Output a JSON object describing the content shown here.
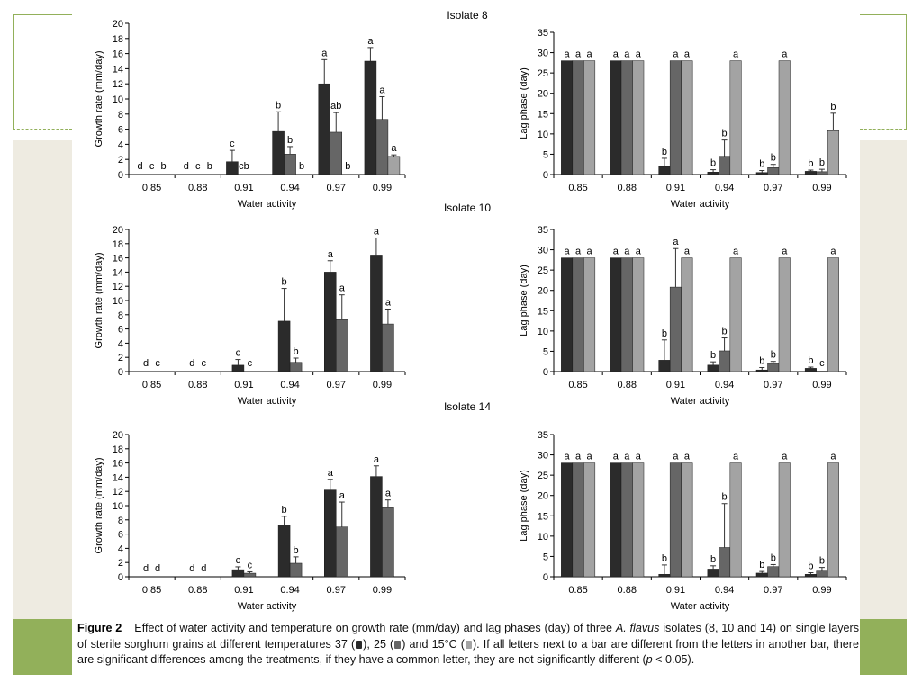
{
  "colors": {
    "t37": "#2b2b2b",
    "t25": "#666666",
    "t15": "#a3a3a3"
  },
  "caption": {
    "label": "Figure 2",
    "p1": "Effect of water activity and temperature on growth rate (mm/day) and lag phases (day) of three",
    "species": "A. flavus",
    "p2": " isolates (8, 10 and 14) on single layers of sterile sorghum grains at different temperatures 37 (",
    "p3": "), 25 (",
    "p4": ") and 15°C (",
    "p5": "). If all letters next to a bar are different from the letters in another bar, there are significant differences among the treatments, if they have a common letter, they are not significantly different (",
    "p_italic": "p",
    "p6": " < 0.05)."
  },
  "chart_data": [
    {
      "type": "bar",
      "isolate_title": "Isolate 8",
      "xlabel": "Water activity",
      "ylabel": "Growth rate (mm/day)",
      "ylim": [
        0,
        20
      ],
      "yticks": [
        0,
        2,
        4,
        6,
        8,
        10,
        12,
        14,
        16,
        18,
        20
      ],
      "categories": [
        "0.85",
        "0.88",
        "0.91",
        "0.94",
        "0.97",
        "0.99"
      ],
      "series_count": 3,
      "values": [
        [
          0,
          0,
          0
        ],
        [
          0,
          0,
          0
        ],
        [
          1.7,
          0,
          0
        ],
        [
          5.7,
          2.7,
          0
        ],
        [
          12.0,
          5.6,
          0
        ],
        [
          15.0,
          7.3,
          2.4
        ]
      ],
      "errors": [
        [
          0,
          0,
          0
        ],
        [
          0,
          0,
          0
        ],
        [
          1.5,
          0,
          0
        ],
        [
          2.6,
          1.0,
          0
        ],
        [
          3.2,
          2.6,
          0
        ],
        [
          1.8,
          3.0,
          0.2
        ]
      ],
      "labels": [
        [
          "d",
          "c",
          "b"
        ],
        [
          "d",
          "c",
          "b"
        ],
        [
          "c",
          "cb",
          ""
        ],
        [
          "b",
          "b",
          "b"
        ],
        [
          "a",
          "ab",
          "b"
        ],
        [
          "a",
          "a",
          "a"
        ]
      ]
    },
    {
      "type": "bar",
      "isolate_title": "",
      "xlabel": "Water activity",
      "ylabel": "Lag phase (day)",
      "ylim": [
        0,
        35
      ],
      "yticks": [
        0,
        5,
        10,
        15,
        20,
        25,
        30,
        35
      ],
      "categories": [
        "0.85",
        "0.88",
        "0.91",
        "0.94",
        "0.97",
        "0.99"
      ],
      "series_count": 3,
      "values": [
        [
          28,
          28,
          28
        ],
        [
          28,
          28,
          28
        ],
        [
          2.0,
          28,
          28
        ],
        [
          0.6,
          4.5,
          28
        ],
        [
          0.5,
          1.7,
          28
        ],
        [
          0.8,
          0.7,
          10.8
        ]
      ],
      "errors": [
        [
          0,
          0,
          0
        ],
        [
          0,
          0,
          0
        ],
        [
          2.0,
          0,
          0
        ],
        [
          0.6,
          4.0,
          0
        ],
        [
          0.5,
          0.8,
          0
        ],
        [
          0.3,
          0.6,
          4.3
        ]
      ],
      "labels": [
        [
          "a",
          "a",
          "a"
        ],
        [
          "a",
          "a",
          "a"
        ],
        [
          "b",
          "a",
          "a"
        ],
        [
          "b",
          "b",
          "a"
        ],
        [
          "b",
          "b",
          "a"
        ],
        [
          "b",
          "b",
          "b"
        ]
      ]
    },
    {
      "type": "bar",
      "isolate_title": "Isolate 10",
      "xlabel": "Water activity",
      "ylabel": "Growth rate (mm/day)",
      "ylim": [
        0,
        20
      ],
      "yticks": [
        0,
        2,
        4,
        6,
        8,
        10,
        12,
        14,
        16,
        18,
        20
      ],
      "categories": [
        "0.85",
        "0.88",
        "0.91",
        "0.94",
        "0.97",
        "0.99"
      ],
      "series_count": 2,
      "values": [
        [
          0,
          0
        ],
        [
          0,
          0
        ],
        [
          0.9,
          0
        ],
        [
          7.1,
          1.3
        ],
        [
          14.0,
          7.3
        ],
        [
          16.4,
          6.7
        ]
      ],
      "errors": [
        [
          0,
          0
        ],
        [
          0,
          0
        ],
        [
          0.8,
          0
        ],
        [
          4.6,
          0.6
        ],
        [
          1.6,
          3.5
        ],
        [
          2.4,
          2.1
        ]
      ],
      "labels": [
        [
          "d",
          "c"
        ],
        [
          "d",
          "c"
        ],
        [
          "c",
          "c"
        ],
        [
          "b",
          "b"
        ],
        [
          "a",
          "a"
        ],
        [
          "a",
          "a"
        ]
      ]
    },
    {
      "type": "bar",
      "isolate_title": "",
      "xlabel": "Water activity",
      "ylabel": "Lag phase (day)",
      "ylim": [
        0,
        35
      ],
      "yticks": [
        0,
        5,
        10,
        15,
        20,
        25,
        30,
        35
      ],
      "categories": [
        "0.85",
        "0.88",
        "0.91",
        "0.94",
        "0.97",
        "0.99"
      ],
      "series_count": 3,
      "values": [
        [
          28,
          28,
          28
        ],
        [
          28,
          28,
          28
        ],
        [
          2.8,
          20.8,
          28
        ],
        [
          1.6,
          5.1,
          28
        ],
        [
          0.4,
          2.0,
          28
        ],
        [
          0.8,
          0.1,
          28
        ]
      ],
      "errors": [
        [
          0,
          0,
          0
        ],
        [
          0,
          0,
          0
        ],
        [
          5.0,
          9.5,
          0
        ],
        [
          0.8,
          3.2,
          0
        ],
        [
          0.6,
          0.5,
          0
        ],
        [
          0.3,
          0,
          0
        ]
      ],
      "labels": [
        [
          "a",
          "a",
          "a"
        ],
        [
          "a",
          "a",
          "a"
        ],
        [
          "b",
          "a",
          "a"
        ],
        [
          "b",
          "b",
          "a"
        ],
        [
          "b",
          "b",
          "a"
        ],
        [
          "b",
          "c",
          "a"
        ]
      ]
    },
    {
      "type": "bar",
      "isolate_title": "Isolate 14",
      "xlabel": "Water activity",
      "ylabel": "Growth rate (mm/day)",
      "ylim": [
        0,
        20
      ],
      "yticks": [
        0,
        2,
        4,
        6,
        8,
        10,
        12,
        14,
        16,
        18,
        20
      ],
      "categories": [
        "0.85",
        "0.88",
        "0.91",
        "0.94",
        "0.97",
        "0.99"
      ],
      "series_count": 2,
      "values": [
        [
          0,
          0
        ],
        [
          0,
          0
        ],
        [
          1.0,
          0.5
        ],
        [
          7.2,
          1.9
        ],
        [
          12.2,
          7.0
        ],
        [
          14.1,
          9.7
        ]
      ],
      "errors": [
        [
          0,
          0
        ],
        [
          0,
          0
        ],
        [
          0.4,
          0.2
        ],
        [
          1.3,
          0.9
        ],
        [
          1.5,
          3.5
        ],
        [
          1.5,
          1.1
        ]
      ],
      "labels": [
        [
          "d",
          "d"
        ],
        [
          "d",
          "d"
        ],
        [
          "c",
          "c"
        ],
        [
          "b",
          "b"
        ],
        [
          "a",
          "a"
        ],
        [
          "a",
          "a"
        ]
      ]
    },
    {
      "type": "bar",
      "isolate_title": "",
      "xlabel": "Water activity",
      "ylabel": "Lag phase (day)",
      "ylim": [
        0,
        35
      ],
      "yticks": [
        0,
        5,
        10,
        15,
        20,
        25,
        30,
        35
      ],
      "categories": [
        "0.85",
        "0.88",
        "0.91",
        "0.94",
        "0.97",
        "0.99"
      ],
      "series_count": 3,
      "values": [
        [
          28,
          28,
          28
        ],
        [
          28,
          28,
          28
        ],
        [
          0.6,
          28,
          28
        ],
        [
          1.9,
          7.2,
          28
        ],
        [
          0.9,
          2.5,
          28
        ],
        [
          0.6,
          1.4,
          28
        ]
      ],
      "errors": [
        [
          0,
          0,
          0
        ],
        [
          0,
          0,
          0
        ],
        [
          2.3,
          0,
          0
        ],
        [
          0.8,
          10.8,
          0
        ],
        [
          0.4,
          0.5,
          0
        ],
        [
          0.4,
          0.9,
          0
        ]
      ],
      "labels": [
        [
          "a",
          "a",
          "a"
        ],
        [
          "a",
          "a",
          "a"
        ],
        [
          "b",
          "a",
          "a"
        ],
        [
          "b",
          "b",
          "a"
        ],
        [
          "b",
          "b",
          "a"
        ],
        [
          "b",
          "b",
          "a"
        ]
      ]
    }
  ]
}
